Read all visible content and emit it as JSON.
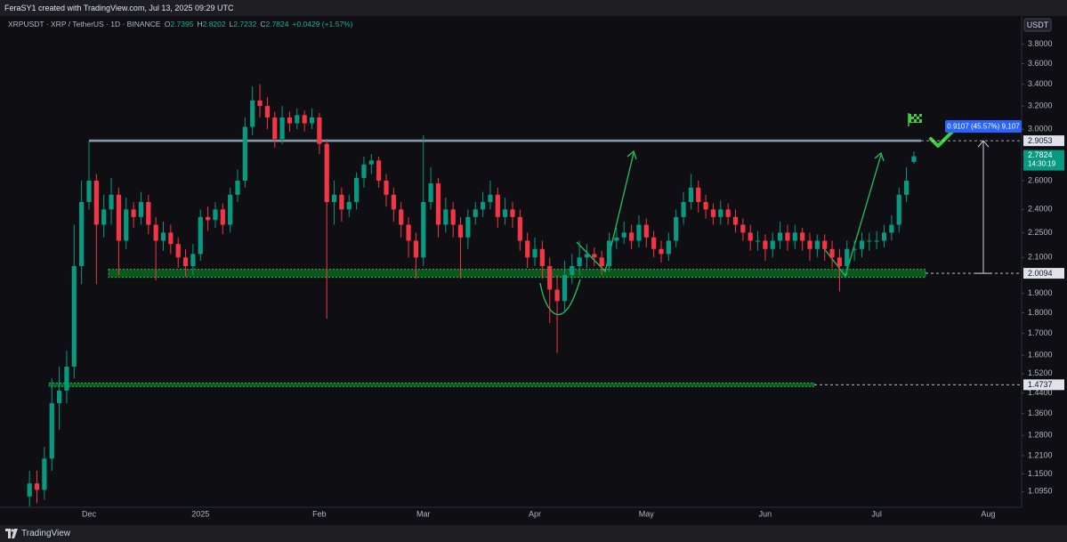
{
  "header": {
    "text": "FeraSY1 created with TradingView.com, Jul 13, 2025 09:29 UTC"
  },
  "chart_data": {
    "type": "candlestick",
    "symbol": "XRPUSDT · XRP / TetherUS · 1D · BINANCE",
    "ohlc_legend": [
      {
        "label": "O",
        "value": 2.7395
      },
      {
        "label": "H",
        "value": 2.8202
      },
      {
        "label": "L",
        "value": 2.7232
      },
      {
        "label": "C",
        "value": 2.7824
      }
    ],
    "change": "+0.0429 (+1.57%)",
    "currency": "USDT",
    "categories": [
      null,
      null,
      null,
      null,
      null,
      null,
      null,
      null,
      "Dec",
      null,
      null,
      null,
      null,
      null,
      null,
      null,
      null,
      null,
      null,
      null,
      null,
      null,
      null,
      "2025",
      null,
      null,
      null,
      null,
      null,
      null,
      null,
      null,
      null,
      null,
      null,
      null,
      null,
      null,
      null,
      "Feb",
      null,
      null,
      null,
      null,
      null,
      null,
      null,
      null,
      null,
      null,
      null,
      null,
      null,
      "Mar",
      null,
      null,
      null,
      null,
      null,
      null,
      null,
      null,
      null,
      null,
      null,
      null,
      null,
      null,
      "Apr",
      null,
      null,
      null,
      null,
      null,
      null,
      null,
      null,
      null,
      null,
      null,
      null,
      null,
      null,
      "May",
      null,
      null,
      null,
      null,
      null,
      null,
      null,
      null,
      null,
      null,
      null,
      null,
      null,
      null,
      null,
      "Jun",
      null,
      null,
      null,
      null,
      null,
      null,
      null,
      null,
      null,
      null,
      null,
      null,
      null,
      null,
      "Jul",
      null,
      null,
      null,
      null,
      null,
      null,
      null,
      null,
      null,
      null,
      null,
      null,
      null,
      null,
      "Aug",
      null,
      null,
      null,
      null
    ],
    "open": [
      1.08,
      1.12,
      1.1,
      1.2,
      1.4,
      1.45,
      1.55,
      2.05,
      2.45,
      2.6,
      2.3,
      2.4,
      2.5,
      2.2,
      2.4,
      2.35,
      2.45,
      2.3,
      2.2,
      2.25,
      2.18,
      2.1,
      2.05,
      2.12,
      2.35,
      2.33,
      2.4,
      2.3,
      2.5,
      2.6,
      3.02,
      3.25,
      3.2,
      3.1,
      2.92,
      3.1,
      3.05,
      3.12,
      3.05,
      3.1,
      2.88,
      2.45,
      2.5,
      2.4,
      2.45,
      2.62,
      2.72,
      2.75,
      2.6,
      2.5,
      2.4,
      2.3,
      2.2,
      2.1,
      2.45,
      2.58,
      2.3,
      2.4,
      2.3,
      2.22,
      2.35,
      2.4,
      2.45,
      2.5,
      2.35,
      2.4,
      2.35,
      2.2,
      2.1,
      2.15,
      2.05,
      1.92,
      1.86,
      2.0,
      2.05,
      2.1,
      2.12,
      2.1,
      2.05,
      2.2,
      2.22,
      2.25,
      2.2,
      2.3,
      2.22,
      2.15,
      2.12,
      2.2,
      2.35,
      2.45,
      2.55,
      2.45,
      2.4,
      2.35,
      2.4,
      2.35,
      2.3,
      2.25,
      2.2,
      2.2,
      2.15,
      2.2,
      2.25,
      2.2,
      2.25,
      2.2,
      2.15,
      2.2,
      2.15,
      2.1,
      2.05,
      2.15,
      2.15,
      2.2,
      2.2,
      2.2,
      2.25,
      2.3,
      2.5,
      2.7395,
      null,
      null,
      null,
      null,
      null,
      null,
      null,
      null,
      null,
      null,
      null,
      null,
      null,
      null
    ],
    "high": [
      1.16,
      1.16,
      1.24,
      1.5,
      1.55,
      1.62,
      2.3,
      2.6,
      2.9,
      2.65,
      2.5,
      2.62,
      2.55,
      2.48,
      2.45,
      2.52,
      2.5,
      2.35,
      2.32,
      2.3,
      2.22,
      2.15,
      2.18,
      2.4,
      2.42,
      2.45,
      2.44,
      2.55,
      2.68,
      3.1,
      3.38,
      3.4,
      3.28,
      3.15,
      3.2,
      3.15,
      3.18,
      3.16,
      3.18,
      3.14,
      2.92,
      2.6,
      2.55,
      2.5,
      2.66,
      2.78,
      2.8,
      2.78,
      2.65,
      2.55,
      2.45,
      2.35,
      2.25,
      2.95,
      2.7,
      2.62,
      2.48,
      2.45,
      2.35,
      2.4,
      2.45,
      2.52,
      2.6,
      2.55,
      2.48,
      2.45,
      2.4,
      2.25,
      2.22,
      2.2,
      2.1,
      2.0,
      2.08,
      2.12,
      2.2,
      2.18,
      2.16,
      2.14,
      2.25,
      2.28,
      2.32,
      2.3,
      2.36,
      2.34,
      2.26,
      2.2,
      2.25,
      2.4,
      2.52,
      2.65,
      2.6,
      2.5,
      2.44,
      2.46,
      2.44,
      2.4,
      2.34,
      2.3,
      2.26,
      2.24,
      2.25,
      2.32,
      2.3,
      2.3,
      2.28,
      2.25,
      2.24,
      2.24,
      2.2,
      2.15,
      2.2,
      2.2,
      2.25,
      2.25,
      2.26,
      2.3,
      2.36,
      2.55,
      2.7,
      2.8202,
      null,
      null,
      null,
      null,
      null,
      null,
      null,
      null,
      null,
      null,
      null,
      null,
      null,
      null
    ],
    "low": [
      1.05,
      1.06,
      1.07,
      1.16,
      1.3,
      1.4,
      1.5,
      1.95,
      2.4,
      1.95,
      2.22,
      2.3,
      2.0,
      2.15,
      2.28,
      2.3,
      2.24,
      1.97,
      2.14,
      2.12,
      2.04,
      1.99,
      2.0,
      2.08,
      2.26,
      2.28,
      2.24,
      2.25,
      2.45,
      2.55,
      2.95,
      3.1,
      3.0,
      2.85,
      2.88,
      2.98,
      3.0,
      2.98,
      3.0,
      2.8,
      1.77,
      2.3,
      2.32,
      2.35,
      2.4,
      2.55,
      2.65,
      2.55,
      2.42,
      2.32,
      2.22,
      2.1,
      1.98,
      2.05,
      2.4,
      2.22,
      2.25,
      2.22,
      1.98,
      2.15,
      2.3,
      2.35,
      2.4,
      2.28,
      2.3,
      2.28,
      2.14,
      2.04,
      2.05,
      1.98,
      1.75,
      1.61,
      1.8,
      1.95,
      2.0,
      2.04,
      2.05,
      2.0,
      2.02,
      2.15,
      2.18,
      2.15,
      2.16,
      2.16,
      2.1,
      2.07,
      2.08,
      2.16,
      2.3,
      2.4,
      2.38,
      2.34,
      2.3,
      2.3,
      2.3,
      2.25,
      2.2,
      2.14,
      2.14,
      2.08,
      2.1,
      2.15,
      2.14,
      2.15,
      2.14,
      2.08,
      2.1,
      2.08,
      2.04,
      1.91,
      2.0,
      2.08,
      2.1,
      2.14,
      2.15,
      2.16,
      2.2,
      2.25,
      2.45,
      2.7232,
      null,
      null,
      null,
      null,
      null,
      null,
      null,
      null,
      null,
      null,
      null,
      null,
      null,
      null
    ],
    "close": [
      1.12,
      1.1,
      1.2,
      1.4,
      1.45,
      1.55,
      2.05,
      2.45,
      2.6,
      2.3,
      2.4,
      2.5,
      2.2,
      2.4,
      2.35,
      2.45,
      2.3,
      2.2,
      2.25,
      2.18,
      2.1,
      2.05,
      2.12,
      2.35,
      2.33,
      2.4,
      2.3,
      2.5,
      2.6,
      3.02,
      3.25,
      3.2,
      3.1,
      2.92,
      3.1,
      3.05,
      3.12,
      3.05,
      3.1,
      2.88,
      2.45,
      2.5,
      2.4,
      2.45,
      2.62,
      2.72,
      2.75,
      2.6,
      2.5,
      2.4,
      2.3,
      2.2,
      2.1,
      2.45,
      2.58,
      2.3,
      2.4,
      2.3,
      2.22,
      2.35,
      2.4,
      2.45,
      2.5,
      2.35,
      2.4,
      2.35,
      2.2,
      2.1,
      2.15,
      2.05,
      1.92,
      1.86,
      2.0,
      2.05,
      2.1,
      2.12,
      2.1,
      2.05,
      2.2,
      2.22,
      2.25,
      2.2,
      2.3,
      2.22,
      2.15,
      2.12,
      2.2,
      2.35,
      2.45,
      2.55,
      2.45,
      2.4,
      2.35,
      2.4,
      2.35,
      2.3,
      2.25,
      2.2,
      2.2,
      2.15,
      2.2,
      2.25,
      2.2,
      2.25,
      2.2,
      2.15,
      2.2,
      2.15,
      2.1,
      2.05,
      2.15,
      2.15,
      2.2,
      2.2,
      2.2,
      2.25,
      2.3,
      2.5,
      2.6,
      2.7824,
      null,
      null,
      null,
      null,
      null,
      null,
      null,
      null,
      null,
      null,
      null,
      null,
      null,
      null
    ],
    "up_color": "#089981",
    "down_color": "#f23645",
    "log_scale": true,
    "ylim": [
      1.048,
      4.09
    ],
    "yticks": [
      {
        "value": 3.8,
        "label": "3.8000"
      },
      {
        "value": 3.6,
        "label": "3.6000"
      },
      {
        "value": 3.4,
        "label": "3.4000"
      },
      {
        "value": 3.2,
        "label": "3.2000"
      },
      {
        "value": 3.0,
        "label": "3.0000"
      },
      {
        "value": 2.6,
        "label": "2.6000"
      },
      {
        "value": 2.4,
        "label": "2.4000"
      },
      {
        "value": 2.25,
        "label": "2.2500"
      },
      {
        "value": 2.1,
        "label": "2.1000"
      },
      {
        "value": 1.9,
        "label": "1.9000"
      },
      {
        "value": 1.8,
        "label": "1.8000"
      },
      {
        "value": 1.7,
        "label": "1.7000"
      },
      {
        "value": 1.6,
        "label": "1.6000"
      },
      {
        "value": 1.52,
        "label": "1.5200"
      },
      {
        "value": 1.44,
        "label": "1.4400"
      },
      {
        "value": 1.36,
        "label": "1.3600"
      },
      {
        "value": 1.28,
        "label": "1.2800"
      },
      {
        "value": 1.21,
        "label": "1.2100"
      },
      {
        "value": 1.15,
        "label": "1.1500"
      },
      {
        "value": 1.095,
        "label": "1.0950"
      }
    ],
    "levels": [
      2.9053,
      2.0094,
      1.4737
    ],
    "last_price": {
      "value": 2.7824,
      "countdown": "14:30:19"
    },
    "measure_label": "0.9107 (45.57%) 9,107"
  },
  "footer": {
    "brand": "TradingView"
  }
}
